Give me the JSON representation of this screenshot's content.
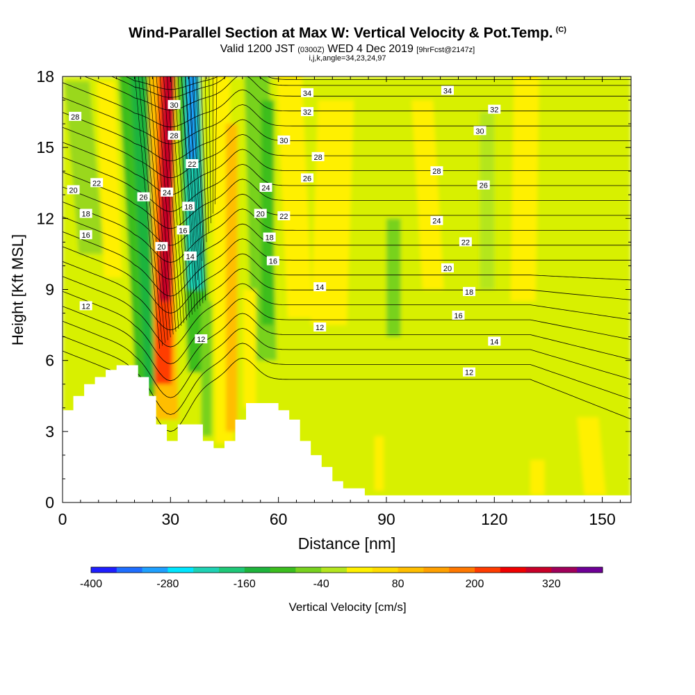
{
  "header": {
    "title": "Wind-Parallel Section at Max W: Vertical Velocity & Pot.Temp.",
    "copyright": "(C)",
    "valid_prefix": "Valid 1200 JST",
    "valid_utc": "(0300Z)",
    "valid_date": "WED 4 Dec 2019",
    "forecast": "[9hrFcst@2147z]",
    "params": "i,j,k,angle=34,23,24,97"
  },
  "chart_data": {
    "type": "heatmap",
    "xlabel": "Distance [nm]",
    "ylabel": "Height [Kft MSL]",
    "xlim": [
      0,
      158
    ],
    "ylim": [
      0,
      18
    ],
    "x_ticks": [
      0,
      30,
      60,
      90,
      120,
      150
    ],
    "y_ticks": [
      0,
      3,
      6,
      9,
      12,
      15,
      18
    ],
    "colorbar": {
      "title": "Vertical Velocity [cm/s]",
      "tick_labels": [
        "-400",
        "-280",
        "-160",
        "-40",
        "80",
        "200",
        "320"
      ],
      "min": -400,
      "max": 400,
      "step": 40,
      "colors": [
        "#1e1eff",
        "#1e6eff",
        "#1ea0ff",
        "#00e6ff",
        "#1ed2b4",
        "#1ec878",
        "#1eb43c",
        "#3cbe1e",
        "#78d21e",
        "#b4e61e",
        "#fff000",
        "#ffdc00",
        "#ffbe00",
        "#ffa000",
        "#ff7800",
        "#ff3c00",
        "#f00000",
        "#c80028",
        "#a0005a",
        "#6e0096"
      ]
    },
    "terrain": [
      [
        0,
        3.9
      ],
      [
        3,
        3.9
      ],
      [
        3,
        4.5
      ],
      [
        6,
        4.5
      ],
      [
        6,
        5.0
      ],
      [
        9,
        5.0
      ],
      [
        9,
        5.3
      ],
      [
        12,
        5.3
      ],
      [
        12,
        5.6
      ],
      [
        15,
        5.6
      ],
      [
        15,
        5.8
      ],
      [
        21,
        5.8
      ],
      [
        21,
        5.3
      ],
      [
        24,
        5.3
      ],
      [
        24,
        4.5
      ],
      [
        26,
        4.5
      ],
      [
        26,
        3.3
      ],
      [
        29,
        3.3
      ],
      [
        29,
        2.6
      ],
      [
        32,
        2.6
      ],
      [
        32,
        3.3
      ],
      [
        39,
        3.3
      ],
      [
        39,
        2.6
      ],
      [
        42,
        2.6
      ],
      [
        42,
        2.3
      ],
      [
        45,
        2.3
      ],
      [
        45,
        2.6
      ],
      [
        48,
        2.6
      ],
      [
        48,
        3.5
      ],
      [
        51,
        3.5
      ],
      [
        51,
        4.2
      ],
      [
        60,
        4.2
      ],
      [
        60,
        3.9
      ],
      [
        63,
        3.9
      ],
      [
        63,
        3.5
      ],
      [
        66,
        3.5
      ],
      [
        66,
        2.6
      ],
      [
        69,
        2.6
      ],
      [
        69,
        2.0
      ],
      [
        72,
        2.0
      ],
      [
        72,
        1.5
      ],
      [
        75,
        1.5
      ],
      [
        75,
        0.9
      ],
      [
        78,
        0.9
      ],
      [
        78,
        0.6
      ],
      [
        84,
        0.6
      ],
      [
        84,
        0.3
      ],
      [
        158,
        0.3
      ]
    ],
    "theta_labels": [
      {
        "text": "28",
        "x": 3.5,
        "y": 16.3
      },
      {
        "text": "20",
        "x": 3,
        "y": 13.2
      },
      {
        "text": "22",
        "x": 9.5,
        "y": 13.5
      },
      {
        "text": "18",
        "x": 6.5,
        "y": 12.2
      },
      {
        "text": "16",
        "x": 6.5,
        "y": 11.3
      },
      {
        "text": "12",
        "x": 6.5,
        "y": 8.3
      },
      {
        "text": "26",
        "x": 22.5,
        "y": 12.9
      },
      {
        "text": "30",
        "x": 31,
        "y": 16.8
      },
      {
        "text": "28",
        "x": 31,
        "y": 15.5
      },
      {
        "text": "24",
        "x": 29,
        "y": 13.1
      },
      {
        "text": "22",
        "x": 36,
        "y": 14.3
      },
      {
        "text": "20",
        "x": 27.5,
        "y": 10.8
      },
      {
        "text": "18",
        "x": 35,
        "y": 12.5
      },
      {
        "text": "16",
        "x": 33.5,
        "y": 11.5
      },
      {
        "text": "14",
        "x": 35.5,
        "y": 10.4
      },
      {
        "text": "12",
        "x": 38.5,
        "y": 6.9
      },
      {
        "text": "24",
        "x": 56.5,
        "y": 13.3
      },
      {
        "text": "20",
        "x": 55,
        "y": 12.2
      },
      {
        "text": "22",
        "x": 61.5,
        "y": 12.1
      },
      {
        "text": "18",
        "x": 57.5,
        "y": 11.2
      },
      {
        "text": "16",
        "x": 58.5,
        "y": 10.2
      },
      {
        "text": "34",
        "x": 68,
        "y": 17.3
      },
      {
        "text": "32",
        "x": 68,
        "y": 16.5
      },
      {
        "text": "30",
        "x": 61.5,
        "y": 15.3
      },
      {
        "text": "28",
        "x": 71,
        "y": 14.6
      },
      {
        "text": "26",
        "x": 68,
        "y": 13.7
      },
      {
        "text": "14",
        "x": 71.5,
        "y": 9.1
      },
      {
        "text": "12",
        "x": 71.5,
        "y": 7.4
      },
      {
        "text": "34",
        "x": 107,
        "y": 17.4
      },
      {
        "text": "32",
        "x": 120,
        "y": 16.6
      },
      {
        "text": "30",
        "x": 116,
        "y": 15.7
      },
      {
        "text": "28",
        "x": 104,
        "y": 14.0
      },
      {
        "text": "26",
        "x": 117,
        "y": 13.4
      },
      {
        "text": "24",
        "x": 104,
        "y": 11.9
      },
      {
        "text": "22",
        "x": 112,
        "y": 11.0
      },
      {
        "text": "20",
        "x": 107,
        "y": 9.9
      },
      {
        "text": "18",
        "x": 113,
        "y": 8.9
      },
      {
        "text": "16",
        "x": 110,
        "y": 7.9
      },
      {
        "text": "14",
        "x": 120,
        "y": 6.8
      },
      {
        "text": "12",
        "x": 113,
        "y": 5.5
      }
    ]
  }
}
